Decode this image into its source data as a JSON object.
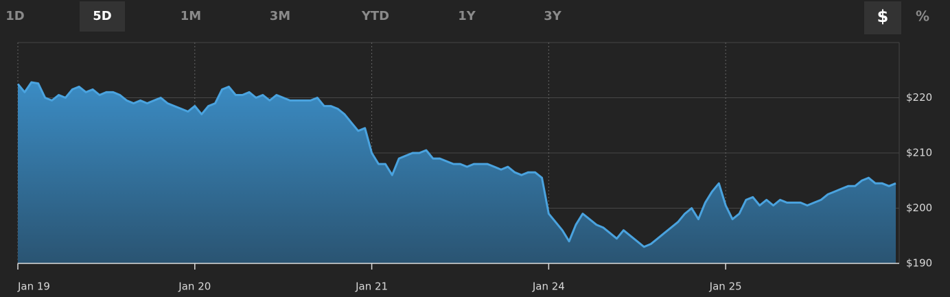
{
  "range_tabs": [
    "1D",
    "5D",
    "1M",
    "3M",
    "YTD",
    "1Y",
    "3Y"
  ],
  "range_selected": 1,
  "unit_tabs": [
    "$",
    "%"
  ],
  "unit_selected": 0,
  "chart_data": {
    "type": "area",
    "color": "#4aa3df",
    "xlim": [
      0,
      129.5
    ],
    "xticks": [
      {
        "value": 0,
        "label": "Jan 19"
      },
      {
        "value": 26,
        "label": "Jan 20"
      },
      {
        "value": 52,
        "label": "Jan 21"
      },
      {
        "value": 78,
        "label": "Jan 24"
      },
      {
        "value": 104,
        "label": "Jan 25"
      }
    ],
    "ylim": [
      190,
      230
    ],
    "yticks": [
      {
        "value": 190,
        "label": "$190"
      },
      {
        "value": 200,
        "label": "$200"
      },
      {
        "value": 210,
        "label": "$210"
      },
      {
        "value": 220,
        "label": "$220"
      }
    ],
    "grid": true,
    "values": [
      222.5,
      221,
      222.8,
      222.6,
      220,
      219.5,
      220.5,
      220,
      221.5,
      222,
      221,
      221.5,
      220.5,
      221,
      221,
      220.5,
      219.5,
      219,
      219.5,
      219,
      219.5,
      220,
      219,
      218.5,
      218,
      217.5,
      218.5,
      217,
      218.5,
      219,
      221.5,
      222,
      220.5,
      220.5,
      221,
      220,
      220.5,
      219.5,
      220.5,
      220,
      219.5,
      219.5,
      219.5,
      219.5,
      220,
      218.5,
      218.5,
      218,
      217,
      215.5,
      214,
      214.5,
      210,
      208,
      208,
      206,
      209,
      209.5,
      210,
      210,
      210.5,
      209,
      209,
      208.5,
      208,
      208,
      207.5,
      208,
      208,
      208,
      207.5,
      207,
      207.5,
      206.5,
      206,
      206.5,
      206.5,
      205.5,
      199,
      197.5,
      196,
      194,
      197,
      199,
      198,
      197,
      196.5,
      195.5,
      194.5,
      196,
      195,
      194,
      193,
      193.5,
      194.5,
      195.5,
      196.5,
      197.5,
      199,
      200,
      198,
      201,
      203,
      204.5,
      200.5,
      198,
      199,
      201.5,
      202,
      200.5,
      201.5,
      200.5,
      201.5,
      201,
      201,
      201,
      200.5,
      201,
      201.5,
      202.5,
      203,
      203.5,
      204,
      204,
      205,
      205.5,
      204.5,
      204.5,
      204,
      204.5
    ]
  }
}
